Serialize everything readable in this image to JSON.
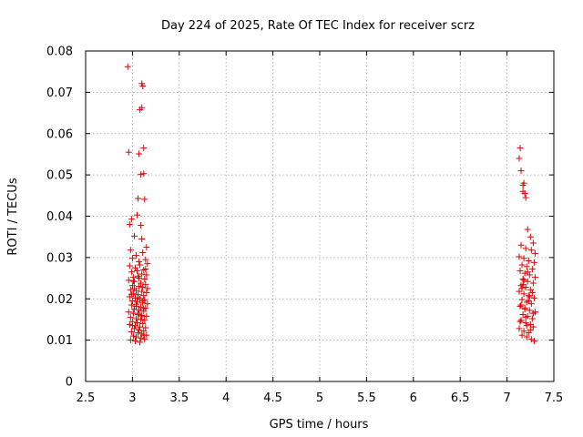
{
  "chart_data": {
    "type": "scatter",
    "title": "Day 224 of 2025, Rate Of TEC Index for receiver scrz",
    "xlabel": "GPS time / hours",
    "ylabel": "ROTI / TECUs",
    "xlim": [
      2.5,
      7.5
    ],
    "ylim": [
      0,
      0.08
    ],
    "xticks": [
      "2.5",
      "3",
      "3.5",
      "4",
      "4.5",
      "5",
      "5.5",
      "6",
      "6.5",
      "7",
      "7.5"
    ],
    "yticks": [
      "0",
      "0.01",
      "0.02",
      "0.03",
      "0.04",
      "0.05",
      "0.06",
      "0.07",
      "0.08"
    ],
    "grid": true,
    "marker": "+",
    "color": "#e00000",
    "series": [
      {
        "x": [
          2.95,
          2.96,
          3.1,
          3.11,
          3.08,
          3.1,
          3.12,
          3.07,
          3.09,
          3.12,
          3.06,
          3.13,
          2.99,
          3.05,
          3.09,
          2.97,
          3.02,
          3.1,
          3.15,
          2.98,
          3.04,
          3.11,
          3.0,
          3.07,
          3.14,
          3.16,
          2.97,
          3.03,
          3.08,
          3.12,
          2.99,
          3.05,
          3.1,
          3.15,
          3.01,
          3.06,
          3.13,
          2.96,
          3.02,
          3.09,
          3.14,
          3.0,
          3.07,
          3.11,
          3.16,
          2.98,
          3.04,
          3.1,
          3.15,
          3.01,
          3.06,
          3.12,
          2.97,
          3.03,
          3.08,
          3.13,
          3.0,
          3.05,
          3.11,
          3.16,
          2.99,
          3.04,
          3.09,
          3.14,
          3.02,
          3.07,
          3.12,
          2.96,
          3.01,
          3.06,
          3.1,
          3.15,
          2.98,
          3.04,
          3.09,
          3.13,
          3.0,
          3.05,
          3.11,
          2.97,
          3.03,
          3.08,
          3.14,
          3.02,
          3.07,
          3.12,
          2.99,
          3.06,
          3.1,
          3.15,
          3.01,
          3.04,
          3.09,
          3.13,
          2.98,
          3.03,
          3.08,
          3.12,
          3.0,
          3.06,
          3.11,
          3.02,
          3.07,
          3.14,
          2.99,
          3.04,
          3.1,
          3.01,
          3.06,
          3.12,
          7.14,
          7.13,
          7.15,
          7.17,
          7.18,
          7.17,
          7.19,
          7.2,
          7.22,
          7.25,
          7.28,
          7.15,
          7.2,
          7.26,
          7.3,
          7.13,
          7.18,
          7.23,
          7.29,
          7.16,
          7.21,
          7.27,
          7.14,
          7.19,
          7.24,
          7.3,
          7.17,
          7.22,
          7.28,
          7.15,
          7.2,
          7.25,
          7.13,
          7.18,
          7.23,
          7.29,
          7.16,
          7.21,
          7.26,
          7.14,
          7.19,
          7.24,
          7.3,
          7.17,
          7.22,
          7.27,
          7.15,
          7.2,
          7.25,
          7.28,
          7.13,
          7.18,
          7.23,
          7.16,
          7.21,
          7.26,
          7.29,
          7.14,
          7.19,
          7.24,
          7.17,
          7.22,
          7.27,
          7.15,
          7.2,
          7.25,
          7.18,
          7.23,
          7.28,
          7.16,
          7.21
        ],
        "y": [
          0.0762,
          0.0555,
          0.0721,
          0.0715,
          0.0658,
          0.0663,
          0.0565,
          0.0551,
          0.0501,
          0.0503,
          0.0443,
          0.0441,
          0.0393,
          0.0403,
          0.0378,
          0.038,
          0.0352,
          0.0345,
          0.0325,
          0.0318,
          0.0305,
          0.0312,
          0.0298,
          0.029,
          0.0295,
          0.0285,
          0.028,
          0.0275,
          0.0282,
          0.027,
          0.0265,
          0.0268,
          0.026,
          0.0258,
          0.0252,
          0.0255,
          0.0248,
          0.0245,
          0.0242,
          0.0238,
          0.0235,
          0.0232,
          0.023,
          0.0228,
          0.0225,
          0.0222,
          0.022,
          0.0218,
          0.0215,
          0.0212,
          0.021,
          0.0208,
          0.0205,
          0.0202,
          0.02,
          0.0198,
          0.0195,
          0.0192,
          0.019,
          0.0188,
          0.0185,
          0.0182,
          0.018,
          0.0178,
          0.0175,
          0.0172,
          0.017,
          0.0168,
          0.0165,
          0.0162,
          0.016,
          0.0158,
          0.0155,
          0.0152,
          0.015,
          0.0148,
          0.0145,
          0.0142,
          0.014,
          0.0138,
          0.0135,
          0.0132,
          0.013,
          0.0128,
          0.0125,
          0.0122,
          0.012,
          0.0118,
          0.0115,
          0.0112,
          0.011,
          0.0108,
          0.0105,
          0.0102,
          0.01,
          0.0098,
          0.0095,
          0.0112,
          0.0135,
          0.0165,
          0.0195,
          0.0225,
          0.025,
          0.0272,
          0.0211,
          0.0187,
          0.0157,
          0.0243,
          0.0203,
          0.0176,
          0.0565,
          0.054,
          0.051,
          0.0475,
          0.048,
          0.046,
          0.0455,
          0.0445,
          0.0368,
          0.035,
          0.0335,
          0.033,
          0.0322,
          0.0318,
          0.031,
          0.0302,
          0.0298,
          0.0292,
          0.0288,
          0.0282,
          0.0278,
          0.0272,
          0.0268,
          0.0262,
          0.0258,
          0.0252,
          0.0248,
          0.0242,
          0.0238,
          0.0232,
          0.0228,
          0.0222,
          0.0218,
          0.0212,
          0.0208,
          0.0202,
          0.0198,
          0.0192,
          0.0188,
          0.0182,
          0.0178,
          0.0172,
          0.0168,
          0.0162,
          0.0158,
          0.0152,
          0.0148,
          0.0142,
          0.0138,
          0.0132,
          0.0128,
          0.0122,
          0.0118,
          0.0112,
          0.0108,
          0.0102,
          0.0098,
          0.0145,
          0.0175,
          0.0205,
          0.0235,
          0.0265,
          0.0215,
          0.0185,
          0.0155,
          0.0125,
          0.0245,
          0.0195,
          0.0165,
          0.0225,
          0.0135
        ]
      }
    ]
  }
}
